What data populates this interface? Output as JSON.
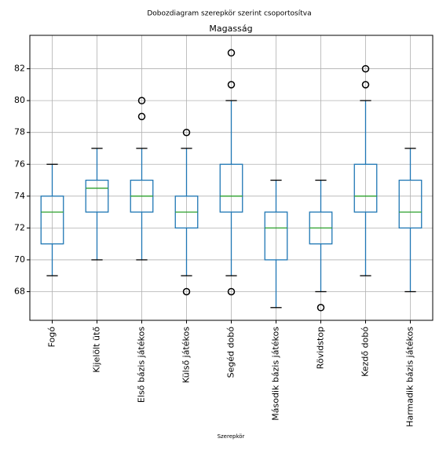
{
  "chart_data": {
    "type": "box",
    "title": "Dobozdiagram szerepkör szerint csoportosítva",
    "subtitle": "Magasság",
    "x_label": "Szerepkör",
    "categories": [
      "Fogó",
      "Kijelölt ütő",
      "Első bázis játékos",
      "Külső játékos",
      "Segéd dobó",
      "Második bázis játékos",
      "Rövidstop",
      "Kezdő dobó",
      "Harmadik bázis játékos"
    ],
    "boxes": [
      {
        "whislo": 69,
        "q1": 71,
        "med": 73,
        "q3": 74,
        "whishi": 76,
        "fliers": []
      },
      {
        "whislo": 70,
        "q1": 73,
        "med": 74.5,
        "q3": 75,
        "whishi": 77,
        "fliers": []
      },
      {
        "whislo": 70,
        "q1": 73,
        "med": 74,
        "q3": 75,
        "whishi": 77,
        "fliers": [
          79,
          80
        ]
      },
      {
        "whislo": 69,
        "q1": 72,
        "med": 73,
        "q3": 74,
        "whishi": 77,
        "fliers": [
          78,
          68
        ]
      },
      {
        "whislo": 69,
        "q1": 73,
        "med": 74,
        "q3": 76,
        "whishi": 80,
        "fliers": [
          81,
          83,
          68
        ]
      },
      {
        "whislo": 67,
        "q1": 70,
        "med": 72,
        "q3": 73,
        "whishi": 75,
        "fliers": []
      },
      {
        "whislo": 68,
        "q1": 71,
        "med": 72,
        "q3": 73,
        "whishi": 75,
        "fliers": [
          67
        ]
      },
      {
        "whislo": 69,
        "q1": 73,
        "med": 74,
        "q3": 76,
        "whishi": 80,
        "fliers": [
          81,
          82
        ]
      },
      {
        "whislo": 68,
        "q1": 72,
        "med": 73,
        "q3": 75,
        "whishi": 77,
        "fliers": []
      }
    ],
    "box_color": "#1f77b4",
    "median_color": "#2ca02c",
    "flier_color": "#000000",
    "ylim": [
      66.2,
      84.1
    ],
    "yticks": [
      68,
      70,
      72,
      74,
      76,
      78,
      80,
      82
    ],
    "grid": true
  }
}
